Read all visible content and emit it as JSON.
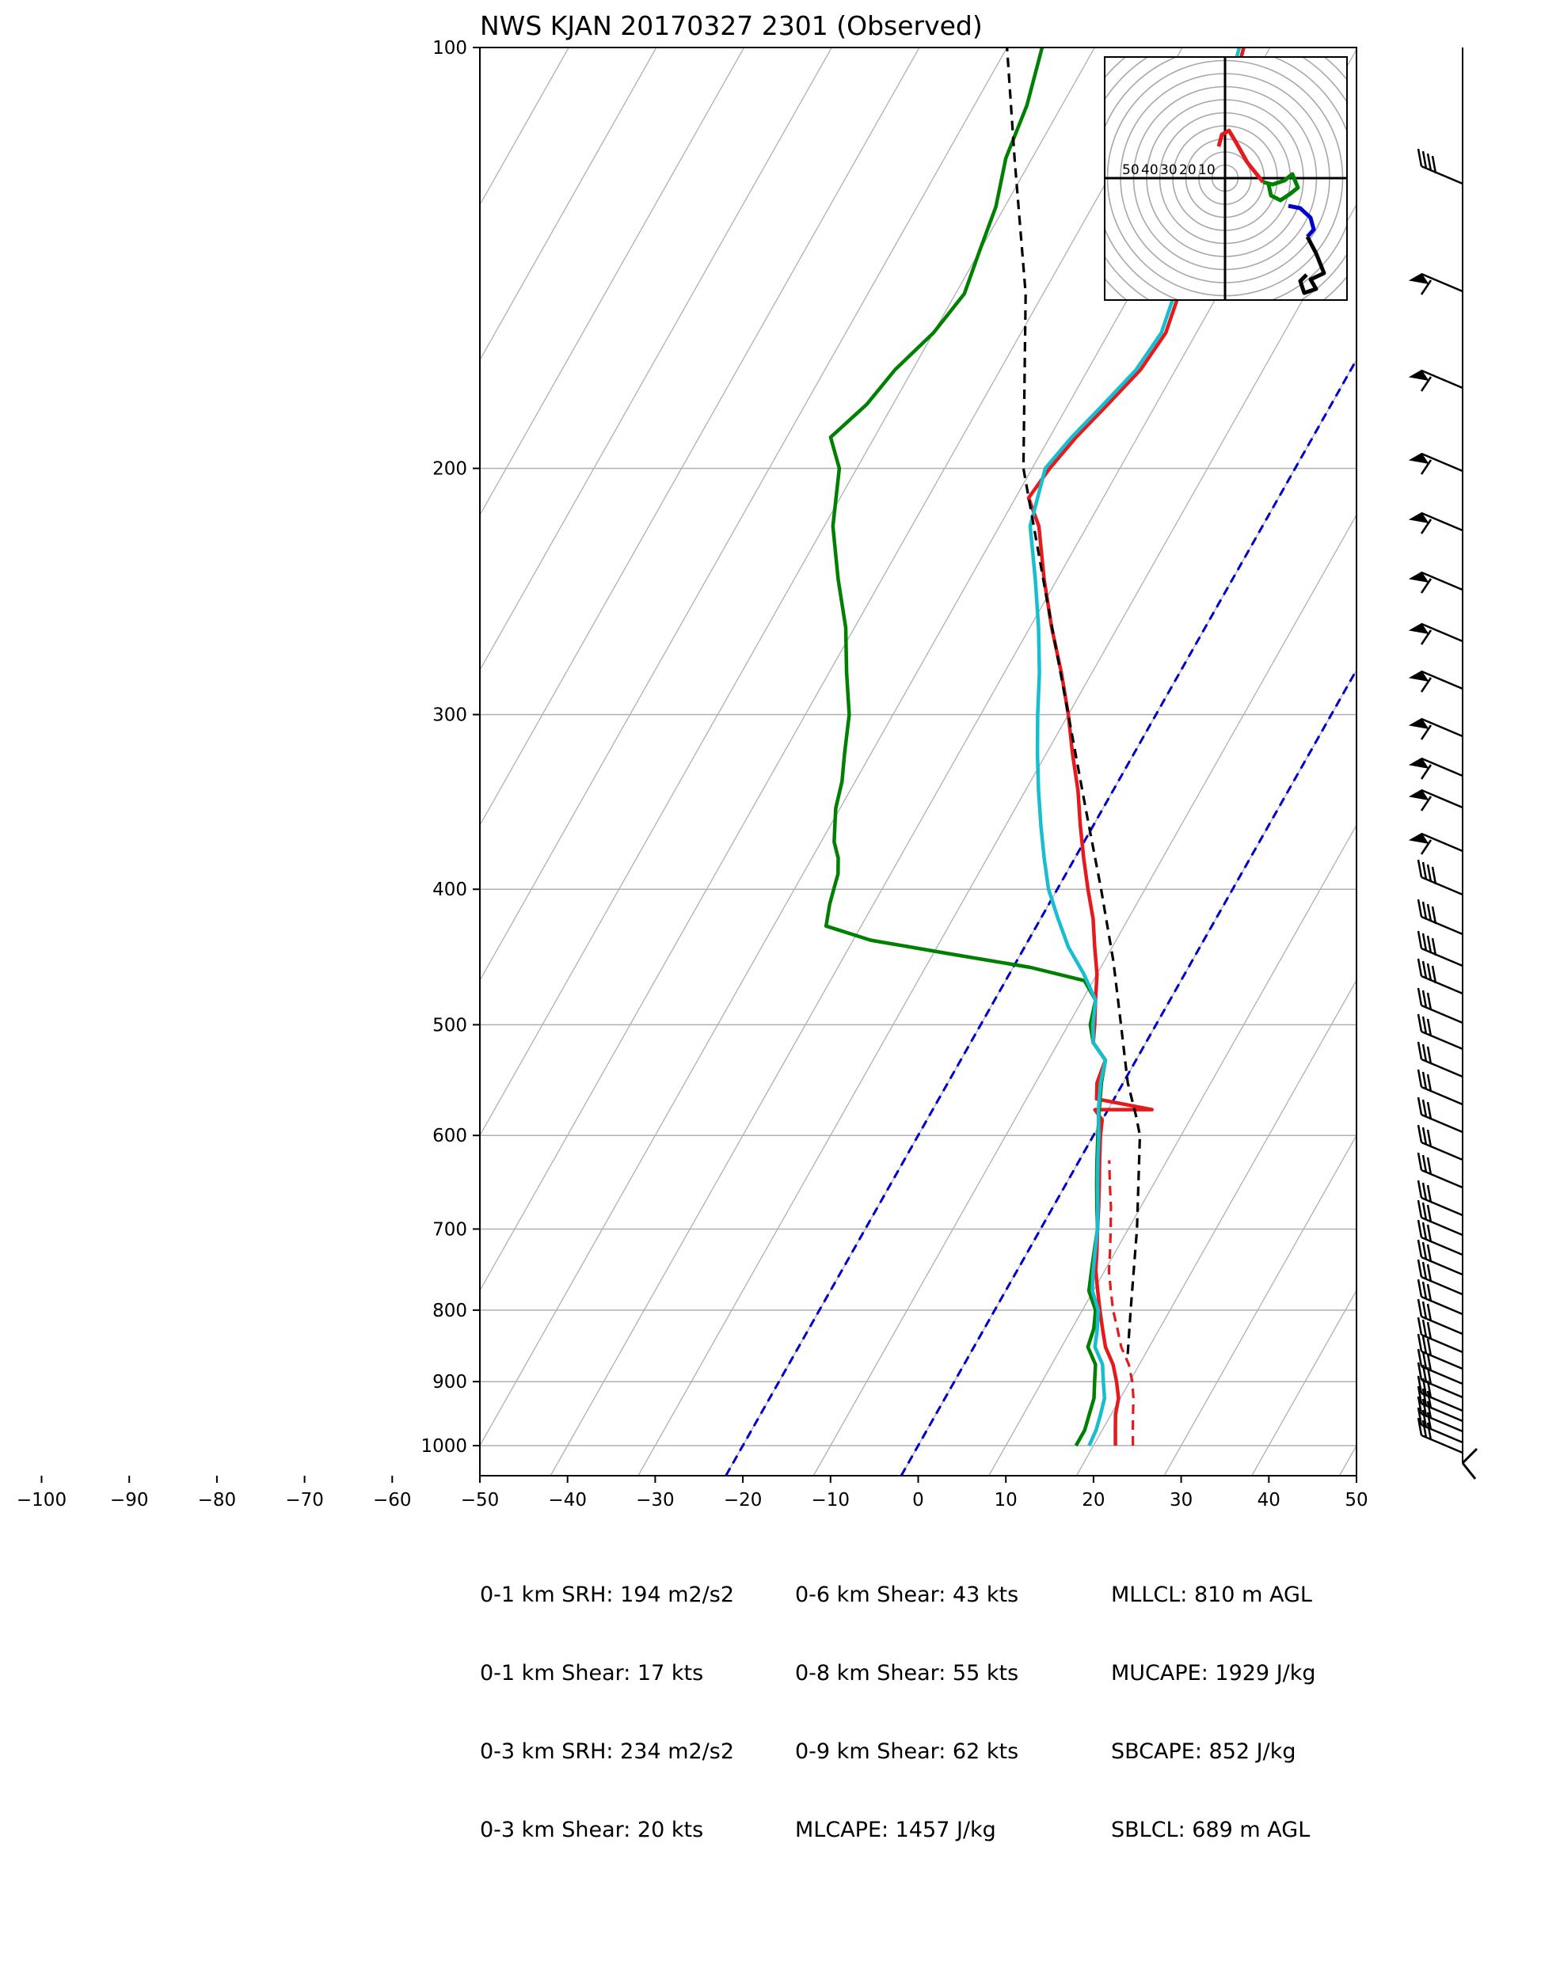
{
  "title": "NWS KJAN 20170327 2301   (Observed)",
  "chart_data": {
    "type": "line",
    "title": "NWS KJAN 20170327 2301   (Observed)",
    "xlabel": "",
    "ylabel": "",
    "x_scale": "skew-T (temperature, degC)",
    "y_scale": "log pressure (hPa)",
    "xlim": [
      -100,
      50
    ],
    "ylim": [
      1050,
      100
    ],
    "x_ticks": [
      "−100",
      "−90",
      "−80",
      "−70",
      "−60",
      "−50",
      "−40",
      "−30",
      "−20",
      "−10",
      "0",
      "10",
      "20",
      "30",
      "40",
      "50"
    ],
    "y_ticks": [
      "100",
      "200",
      "300",
      "400",
      "500",
      "600",
      "700",
      "800",
      "900",
      "1000"
    ],
    "y_tick_values": [
      100,
      200,
      300,
      400,
      500,
      600,
      700,
      800,
      900,
      1000
    ],
    "grid": true,
    "series": [
      {
        "role": "temperature",
        "color": "#e41a1c",
        "points": [
          [
            1000,
            22.5
          ],
          [
            975,
            21.5
          ],
          [
            950,
            20.5
          ],
          [
            925,
            19.8
          ],
          [
            900,
            18.5
          ],
          [
            875,
            17.0
          ],
          [
            850,
            15.0
          ],
          [
            825,
            13.5
          ],
          [
            800,
            12.0
          ],
          [
            775,
            10.5
          ],
          [
            750,
            9.0
          ],
          [
            725,
            7.8
          ],
          [
            700,
            6.5
          ],
          [
            675,
            5.2
          ],
          [
            650,
            3.8
          ],
          [
            625,
            2.3
          ],
          [
            600,
            0.8
          ],
          [
            585,
            0.0
          ],
          [
            575,
            -1.5
          ],
          [
            575,
            5.0
          ],
          [
            565,
            -2.0
          ],
          [
            550,
            -3.0
          ],
          [
            530,
            -3.5
          ],
          [
            515,
            -6.0
          ],
          [
            500,
            -7.0
          ],
          [
            480,
            -8.5
          ],
          [
            460,
            -10.0
          ],
          [
            440,
            -12.0
          ],
          [
            420,
            -14.0
          ],
          [
            400,
            -16.5
          ],
          [
            380,
            -19.0
          ],
          [
            360,
            -21.5
          ],
          [
            340,
            -24.0
          ],
          [
            320,
            -27.0
          ],
          [
            300,
            -30.0
          ],
          [
            280,
            -33.5
          ],
          [
            260,
            -37.5
          ],
          [
            240,
            -41.5
          ],
          [
            220,
            -45.5
          ],
          [
            210,
            -48.5
          ],
          [
            200,
            -48.0
          ],
          [
            190,
            -47.0
          ],
          [
            180,
            -45.5
          ],
          [
            170,
            -44.0
          ],
          [
            160,
            -43.5
          ],
          [
            150,
            -44.5
          ],
          [
            140,
            -45.5
          ],
          [
            130,
            -47.0
          ],
          [
            120,
            -48.5
          ],
          [
            110,
            -51.0
          ],
          [
            100,
            -53.0
          ]
        ]
      },
      {
        "role": "dewpoint",
        "color": "#008000",
        "points": [
          [
            1000,
            18.0
          ],
          [
            975,
            18.0
          ],
          [
            950,
            17.5
          ],
          [
            925,
            17.0
          ],
          [
            900,
            16.0
          ],
          [
            875,
            15.0
          ],
          [
            850,
            13.0
          ],
          [
            825,
            12.5
          ],
          [
            800,
            11.5
          ],
          [
            775,
            9.5
          ],
          [
            750,
            8.5
          ],
          [
            725,
            7.5
          ],
          [
            700,
            6.5
          ],
          [
            675,
            5.0
          ],
          [
            650,
            3.5
          ],
          [
            625,
            2.0
          ],
          [
            600,
            0.5
          ],
          [
            575,
            -1.0
          ],
          [
            550,
            -2.5
          ],
          [
            530,
            -3.5
          ],
          [
            515,
            -6.0
          ],
          [
            500,
            -7.5
          ],
          [
            480,
            -8.5
          ],
          [
            465,
            -11.0
          ],
          [
            455,
            -18.0
          ],
          [
            445,
            -28.0
          ],
          [
            435,
            -38.0
          ],
          [
            425,
            -44.0
          ],
          [
            410,
            -45.0
          ],
          [
            400,
            -45.5
          ],
          [
            390,
            -46.0
          ],
          [
            380,
            -47.0
          ],
          [
            370,
            -48.5
          ],
          [
            360,
            -49.5
          ],
          [
            350,
            -50.5
          ],
          [
            335,
            -51.5
          ],
          [
            320,
            -53.0
          ],
          [
            300,
            -55.0
          ],
          [
            280,
            -58.0
          ],
          [
            260,
            -61.0
          ],
          [
            240,
            -65.0
          ],
          [
            220,
            -69.0
          ],
          [
            200,
            -72.0
          ],
          [
            190,
            -75.0
          ],
          [
            180,
            -73.0
          ],
          [
            170,
            -72.0
          ],
          [
            160,
            -70.0
          ],
          [
            150,
            -69.0
          ],
          [
            140,
            -70.0
          ],
          [
            130,
            -71.0
          ],
          [
            120,
            -73.0
          ],
          [
            110,
            -74.0
          ],
          [
            100,
            -76.0
          ]
        ]
      },
      {
        "role": "virtual-temperature",
        "color": "#e41a1c",
        "dashed": true,
        "points": [
          [
            1000,
            24.5
          ],
          [
            975,
            23.5
          ],
          [
            950,
            22.5
          ],
          [
            925,
            21.5
          ],
          [
            900,
            20.3
          ],
          [
            875,
            18.8
          ],
          [
            850,
            16.8
          ],
          [
            825,
            15.2
          ],
          [
            800,
            13.5
          ],
          [
            775,
            12.0
          ],
          [
            750,
            10.5
          ],
          [
            725,
            9.3
          ],
          [
            700,
            8.0
          ],
          [
            675,
            6.6
          ],
          [
            650,
            5.0
          ],
          [
            625,
            3.4
          ]
        ]
      },
      {
        "role": "wet-bulb",
        "color": "#17becf",
        "points": [
          [
            1000,
            19.5
          ],
          [
            975,
            19.3
          ],
          [
            950,
            18.8
          ],
          [
            925,
            18.2
          ],
          [
            900,
            17.0
          ],
          [
            875,
            15.8
          ],
          [
            850,
            13.8
          ],
          [
            825,
            12.9
          ],
          [
            800,
            11.8
          ],
          [
            775,
            9.9
          ],
          [
            750,
            8.7
          ],
          [
            725,
            7.6
          ],
          [
            700,
            6.5
          ],
          [
            675,
            5.1
          ],
          [
            650,
            3.6
          ],
          [
            625,
            2.1
          ],
          [
            600,
            0.6
          ],
          [
            575,
            -1.1
          ],
          [
            550,
            -2.6
          ],
          [
            530,
            -3.5
          ],
          [
            515,
            -6.0
          ],
          [
            500,
            -7.2
          ],
          [
            480,
            -8.5
          ],
          [
            460,
            -11.5
          ],
          [
            440,
            -15.0
          ],
          [
            420,
            -18.0
          ],
          [
            400,
            -21.0
          ],
          [
            380,
            -23.5
          ],
          [
            360,
            -26.0
          ],
          [
            340,
            -28.5
          ],
          [
            320,
            -31.0
          ],
          [
            300,
            -33.5
          ],
          [
            280,
            -36.0
          ],
          [
            260,
            -39.0
          ],
          [
            240,
            -42.5
          ],
          [
            220,
            -46.5
          ],
          [
            200,
            -48.5
          ],
          [
            190,
            -47.5
          ],
          [
            180,
            -46.0
          ],
          [
            170,
            -44.5
          ],
          [
            160,
            -44.0
          ],
          [
            150,
            -45.0
          ],
          [
            140,
            -46.0
          ],
          [
            130,
            -47.5
          ],
          [
            120,
            -49.0
          ],
          [
            110,
            -51.5
          ],
          [
            100,
            -53.5
          ]
        ]
      },
      {
        "role": "parcel",
        "color": "#000000",
        "dashed": true,
        "points": [
          [
            860,
            18.0
          ],
          [
            800,
            15.5
          ],
          [
            700,
            11.0
          ],
          [
            600,
            5.3
          ],
          [
            580,
            3.5
          ],
          [
            550,
            0.5
          ],
          [
            500,
            -4.0
          ],
          [
            450,
            -9.0
          ],
          [
            400,
            -15.0
          ],
          [
            350,
            -22.0
          ],
          [
            300,
            -30.0
          ],
          [
            250,
            -39.5
          ],
          [
            200,
            -51.0
          ],
          [
            150,
            -62.0
          ],
          [
            120,
            -72.0
          ],
          [
            100,
            -80.0
          ]
        ]
      }
    ],
    "reference_lines": [
      {
        "role": "isotherm",
        "color": "#0000cd",
        "dashed": true,
        "temperature": -20
      },
      {
        "role": "isotherm",
        "color": "#0000cd",
        "dashed": true,
        "temperature": 0
      }
    ],
    "wind_barbs_profile": "right-margin column of wind barbs, 1000–100 hPa",
    "hodograph": {
      "ring_labels": [
        "50",
        "40",
        "30",
        "20",
        "10"
      ],
      "segment_colors": [
        "#e41a1c",
        "#008000",
        "#0000cd",
        "#000000"
      ]
    },
    "parameters": [
      {
        "label": "0-1 km SRH",
        "value": "194 m2/s2"
      },
      {
        "label": "0-1 km Shear",
        "value": "17 kts"
      },
      {
        "label": "0-3 km SRH",
        "value": "234 m2/s2"
      },
      {
        "label": "0-3 km Shear",
        "value": "20 kts"
      },
      {
        "label": "0-6 km Shear",
        "value": "43 kts"
      },
      {
        "label": "0-8 km Shear",
        "value": "55 kts"
      },
      {
        "label": "0-9 km Shear",
        "value": "62 kts"
      },
      {
        "label": "MLCAPE",
        "value": "1457 J/kg"
      },
      {
        "label": "MLLCL",
        "value": "810 m AGL"
      },
      {
        "label": "MUCAPE",
        "value": "1929 J/kg"
      },
      {
        "label": "SBCAPE",
        "value": "852 J/kg"
      },
      {
        "label": "SBLCL",
        "value": "689 m AGL"
      }
    ]
  },
  "params_col1": [
    "0-1 km SRH: 194 m2/s2",
    "0-1 km Shear: 17 kts",
    "0-3 km SRH: 234 m2/s2",
    "0-3 km Shear: 20 kts"
  ],
  "params_col2": [
    "0-6 km Shear: 43 kts",
    "0-8 km Shear: 55 kts",
    "0-9 km Shear: 62 kts",
    "MLCAPE: 1457 J/kg"
  ],
  "params_col3": [
    "MLLCL: 810 m AGL",
    "MUCAPE: 1929 J/kg",
    "SBCAPE: 852 J/kg",
    "SBLCL: 689 m AGL"
  ]
}
